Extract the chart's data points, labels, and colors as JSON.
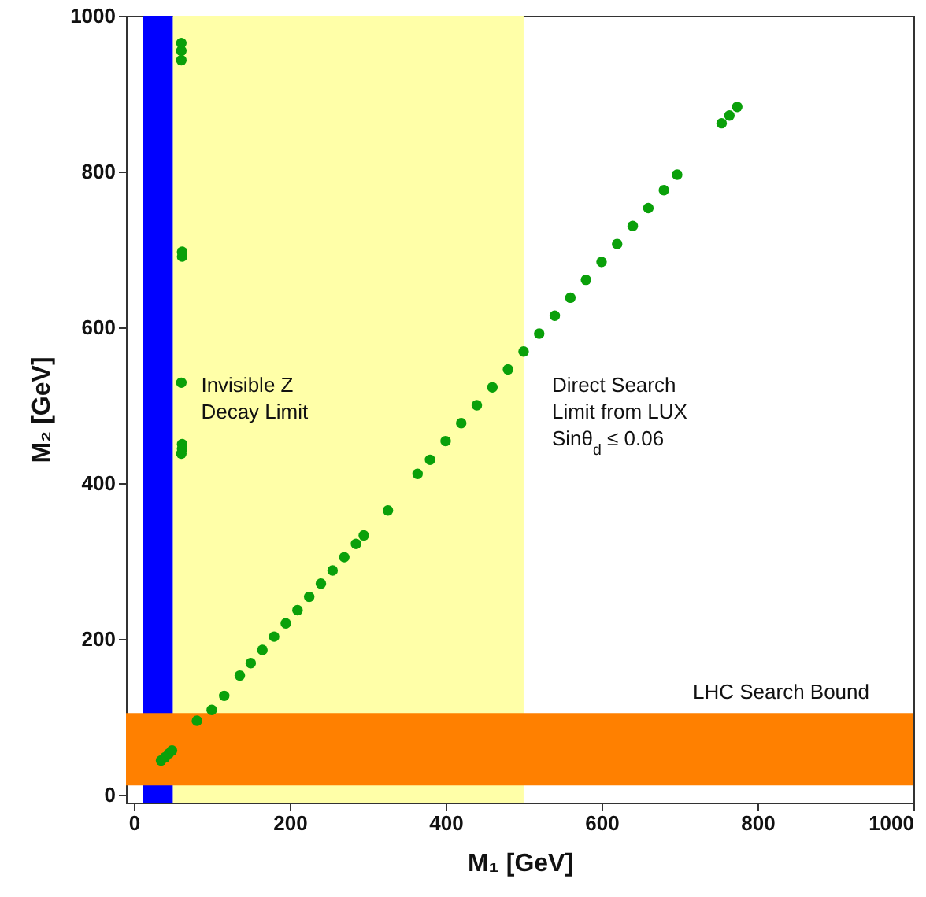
{
  "chart_data": {
    "type": "scatter",
    "xlabel": "M₁ [GeV]",
    "ylabel": "M₂ [GeV]",
    "xlim": [
      -10,
      1000
    ],
    "ylim": [
      -10,
      1000
    ],
    "xticks": [
      0,
      200,
      400,
      600,
      800,
      1000
    ],
    "yticks": [
      0,
      200,
      400,
      600,
      800,
      1000
    ],
    "grid": false,
    "marker": "circle",
    "bands": [
      {
        "axis": "x",
        "from": 50,
        "to": 500,
        "color": "#ffffa8",
        "label": "Direct Search\nLimit from LUX\nSinθ$_{d}$ ≤ 0.06"
      },
      {
        "axis": "x",
        "from": 12,
        "to": 50,
        "color": "#0000ff",
        "label": "Invisible Z\nDecay Limit"
      },
      {
        "axis": "y",
        "from": 12,
        "to": 105,
        "color": "#ff8000",
        "label": "LHC Search Bound"
      }
    ],
    "series": [
      {
        "color": "#0aa00a",
        "x": [
          35,
          40,
          45,
          49,
          81,
          100,
          116,
          136,
          150,
          165,
          180,
          195,
          210,
          225,
          240,
          255,
          270,
          285,
          295,
          326,
          364,
          380,
          400,
          420,
          440,
          460,
          480,
          500,
          520,
          540,
          560,
          580,
          600,
          620,
          640,
          660,
          680,
          697,
          754,
          764,
          774,
          61,
          61,
          61,
          62,
          62,
          61,
          62,
          62,
          61
        ],
        "values": [
          44,
          48,
          53,
          57,
          95,
          109,
          127,
          153,
          169,
          186,
          203,
          220,
          237,
          254,
          271,
          288,
          305,
          322,
          333,
          365,
          412,
          430,
          454,
          477,
          500,
          523,
          546,
          569,
          592,
          615,
          638,
          661,
          684,
          707,
          730,
          753,
          776,
          796,
          862,
          872,
          883,
          943,
          955,
          965,
          691,
          697,
          529,
          450,
          444,
          438
        ]
      }
    ]
  }
}
